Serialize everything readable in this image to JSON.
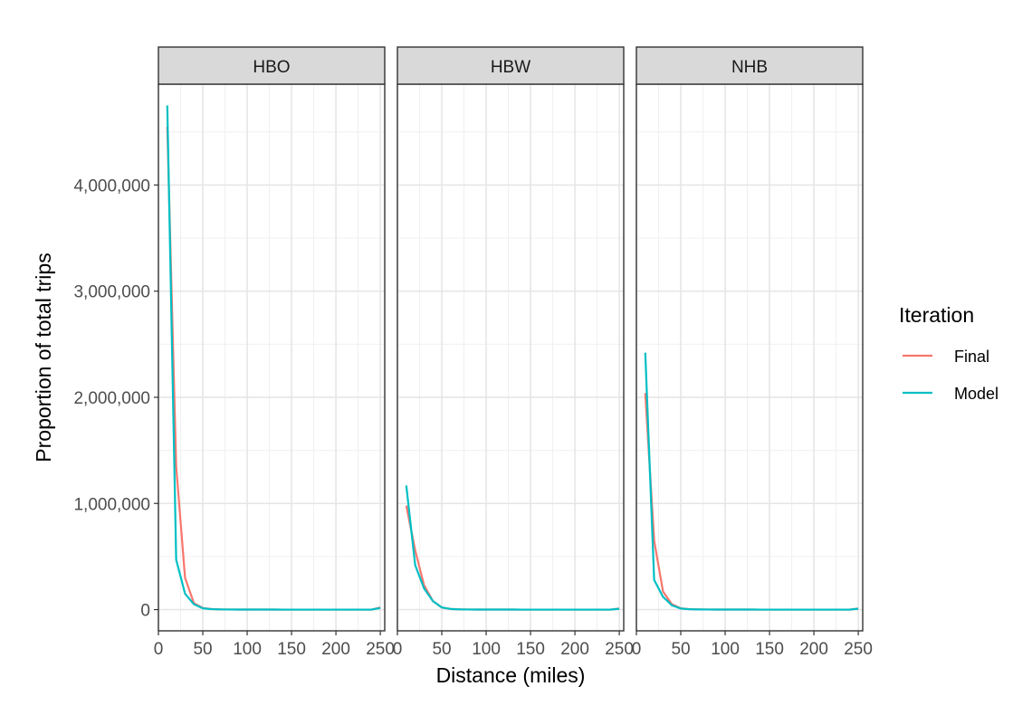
{
  "chart_data": {
    "type": "line",
    "xlabel": "Distance (miles)",
    "ylabel": "Proportion of total trips",
    "xlim": [
      0,
      255
    ],
    "ylim": [
      -200000,
      4950000
    ],
    "x_ticks": [
      0,
      50,
      100,
      150,
      200,
      250
    ],
    "x_tick_labels": [
      "0",
      "50",
      "100",
      "150",
      "200",
      "250"
    ],
    "y_ticks": [
      0,
      1000000,
      2000000,
      3000000,
      4000000
    ],
    "y_tick_labels": [
      "0",
      "1,000,000",
      "2,000,000",
      "3,000,000",
      "4,000,000"
    ],
    "grid": true,
    "legend": {
      "title": "Iteration",
      "placement": "right",
      "entries": [
        {
          "name": "Final",
          "color": "#F8766D"
        },
        {
          "name": "Model",
          "color": "#00BFC4"
        }
      ]
    },
    "x": [
      10,
      20,
      30,
      40,
      50,
      60,
      70,
      80,
      90,
      100,
      110,
      120,
      130,
      140,
      150,
      160,
      170,
      180,
      190,
      200,
      210,
      220,
      230,
      240,
      250
    ],
    "panels": [
      {
        "title": "HBO",
        "series": [
          {
            "name": "Final",
            "values": [
              4550000,
              1350000,
              300000,
              60000,
              15000,
              5000,
              2000,
              1000,
              500,
              300,
              200,
              100,
              100,
              50,
              50,
              50,
              50,
              50,
              50,
              50,
              50,
              50,
              50,
              50,
              20000
            ]
          },
          {
            "name": "Model",
            "values": [
              4750000,
              470000,
              150000,
              50000,
              12000,
              4000,
              2000,
              1000,
              500,
              300,
              200,
              100,
              100,
              50,
              50,
              50,
              50,
              50,
              50,
              50,
              50,
              50,
              50,
              50,
              15000
            ]
          }
        ]
      },
      {
        "title": "HBW",
        "series": [
          {
            "name": "Final",
            "values": [
              980000,
              560000,
              230000,
              80000,
              20000,
              6000,
              2000,
              1000,
              500,
              300,
              200,
              100,
              100,
              50,
              50,
              50,
              50,
              50,
              50,
              50,
              50,
              50,
              50,
              50,
              10000
            ]
          },
          {
            "name": "Model",
            "values": [
              1170000,
              420000,
              200000,
              80000,
              20000,
              6000,
              2000,
              1000,
              500,
              300,
              200,
              100,
              100,
              50,
              50,
              50,
              50,
              50,
              50,
              50,
              50,
              50,
              50,
              50,
              8000
            ]
          }
        ]
      },
      {
        "title": "NHB",
        "series": [
          {
            "name": "Final",
            "values": [
              2040000,
              650000,
              170000,
              50000,
              12000,
              4000,
              2000,
              1000,
              500,
              300,
              200,
              100,
              100,
              50,
              50,
              50,
              50,
              50,
              50,
              50,
              50,
              50,
              50,
              50,
              10000
            ]
          },
          {
            "name": "Model",
            "values": [
              2420000,
              280000,
              120000,
              40000,
              10000,
              3000,
              1500,
              800,
              400,
              300,
              200,
              100,
              100,
              50,
              50,
              50,
              50,
              50,
              50,
              50,
              50,
              50,
              50,
              50,
              8000
            ]
          }
        ]
      }
    ]
  }
}
